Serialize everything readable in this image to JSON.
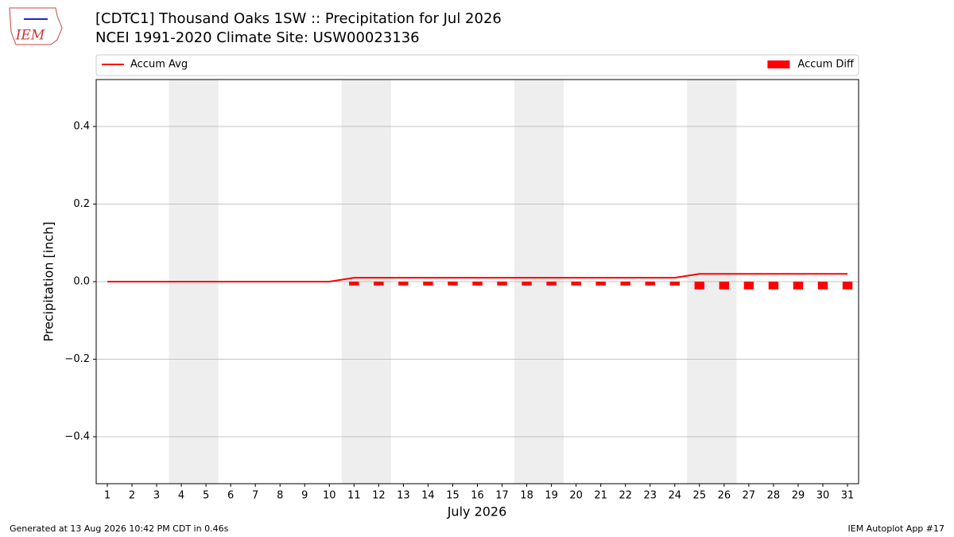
{
  "chart_data": {
    "type": "line_bar",
    "title": "[CDTC1] Thousand Oaks 1SW :: Precipitation for Jul 2026",
    "subtitle": "NCEI 1991-2020 Climate Site: USW00023136",
    "logo_text": "IEM",
    "x_label": "July 2026",
    "y_label": "Precipitation [inch]",
    "x": [
      1,
      2,
      3,
      4,
      5,
      6,
      7,
      8,
      9,
      10,
      11,
      12,
      13,
      14,
      15,
      16,
      17,
      18,
      19,
      20,
      21,
      22,
      23,
      24,
      25,
      26,
      27,
      28,
      29,
      30,
      31
    ],
    "series": [
      {
        "name": "Accum Avg",
        "color": "#ff0000",
        "kind": "line",
        "values": [
          0,
          0,
          0,
          0,
          0,
          0,
          0,
          0,
          0,
          0,
          0.01,
          0.01,
          0.01,
          0.01,
          0.01,
          0.01,
          0.01,
          0.01,
          0.01,
          0.01,
          0.01,
          0.01,
          0.01,
          0.01,
          0.02,
          0.02,
          0.02,
          0.02,
          0.02,
          0.02,
          0.02
        ]
      },
      {
        "name": "Accum Diff",
        "color": "#ff0000",
        "kind": "bar",
        "values": [
          0,
          0,
          0,
          0,
          0,
          0,
          0,
          0,
          0,
          0,
          -0.01,
          -0.01,
          -0.01,
          -0.01,
          -0.01,
          -0.01,
          -0.01,
          -0.01,
          -0.01,
          -0.01,
          -0.01,
          -0.01,
          -0.01,
          -0.01,
          -0.02,
          -0.02,
          -0.02,
          -0.02,
          -0.02,
          -0.02,
          -0.02
        ]
      }
    ],
    "shaded_spans": [
      [
        3.5,
        5.5
      ],
      [
        10.5,
        12.5
      ],
      [
        17.5,
        19.5
      ],
      [
        24.5,
        26.5
      ]
    ],
    "shade_color": "#eeeeee",
    "xlim": [
      0.55,
      31.45
    ],
    "xticks": [
      1,
      2,
      3,
      4,
      5,
      6,
      7,
      8,
      9,
      10,
      11,
      12,
      13,
      14,
      15,
      16,
      17,
      18,
      19,
      20,
      21,
      22,
      23,
      24,
      25,
      26,
      27,
      28,
      29,
      30,
      31
    ],
    "ylim": [
      -0.521,
      0.521
    ],
    "yticks": [
      {
        "value": -0.4,
        "label": "−0.4"
      },
      {
        "value": -0.2,
        "label": "−0.2"
      },
      {
        "value": 0,
        "label": "0.0"
      },
      0.2,
      0.4
    ],
    "grid": true,
    "legend": "above",
    "footer_left": "Generated at 13 Aug 2026 10:42 PM CDT in 0.46s",
    "footer_right": "IEM Autoplot App #17"
  }
}
